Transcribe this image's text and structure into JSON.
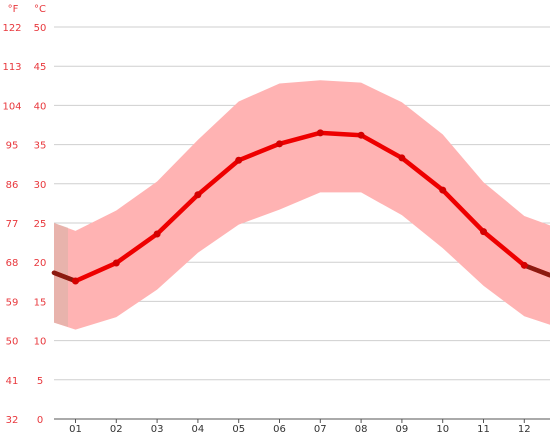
{
  "chart_data": {
    "type": "area",
    "unit_labels": {
      "fahrenheit": "°F",
      "celsius": "°C"
    },
    "y_celsius_ticks": [
      "0",
      "5",
      "10",
      "15",
      "20",
      "25",
      "30",
      "35",
      "40",
      "45",
      "50"
    ],
    "y_fahrenheit_ticks": [
      "32",
      "41",
      "50",
      "59",
      "68",
      "77",
      "86",
      "95",
      "104",
      "113",
      "122"
    ],
    "categories": [
      "01",
      "02",
      "03",
      "04",
      "05",
      "06",
      "07",
      "08",
      "09",
      "10",
      "11",
      "12"
    ],
    "ylim": [
      0,
      50
    ],
    "series": [
      {
        "values": [
          17.6,
          19.9,
          23.6,
          28.6,
          33.0,
          35.1,
          36.5,
          36.2,
          33.3,
          29.2,
          23.9,
          19.6
        ]
      }
    ],
    "band_high": [
      24.0,
      26.6,
      30.3,
      35.6,
      40.5,
      42.8,
      43.2,
      42.9,
      40.4,
      36.3,
      30.2,
      25.9
    ],
    "band_low": [
      11.4,
      13.0,
      16.5,
      21.2,
      24.8,
      26.7,
      28.9,
      28.9,
      26.0,
      21.8,
      17.0,
      13.1
    ],
    "colors": {
      "line": "#ee0000",
      "band": "#ffb3b3",
      "edge_band": "#d9b3a6",
      "axis_text": "#e8383d",
      "grid": "#cfcfcf",
      "points": "#d40000"
    },
    "grid": true,
    "legend": "none"
  }
}
